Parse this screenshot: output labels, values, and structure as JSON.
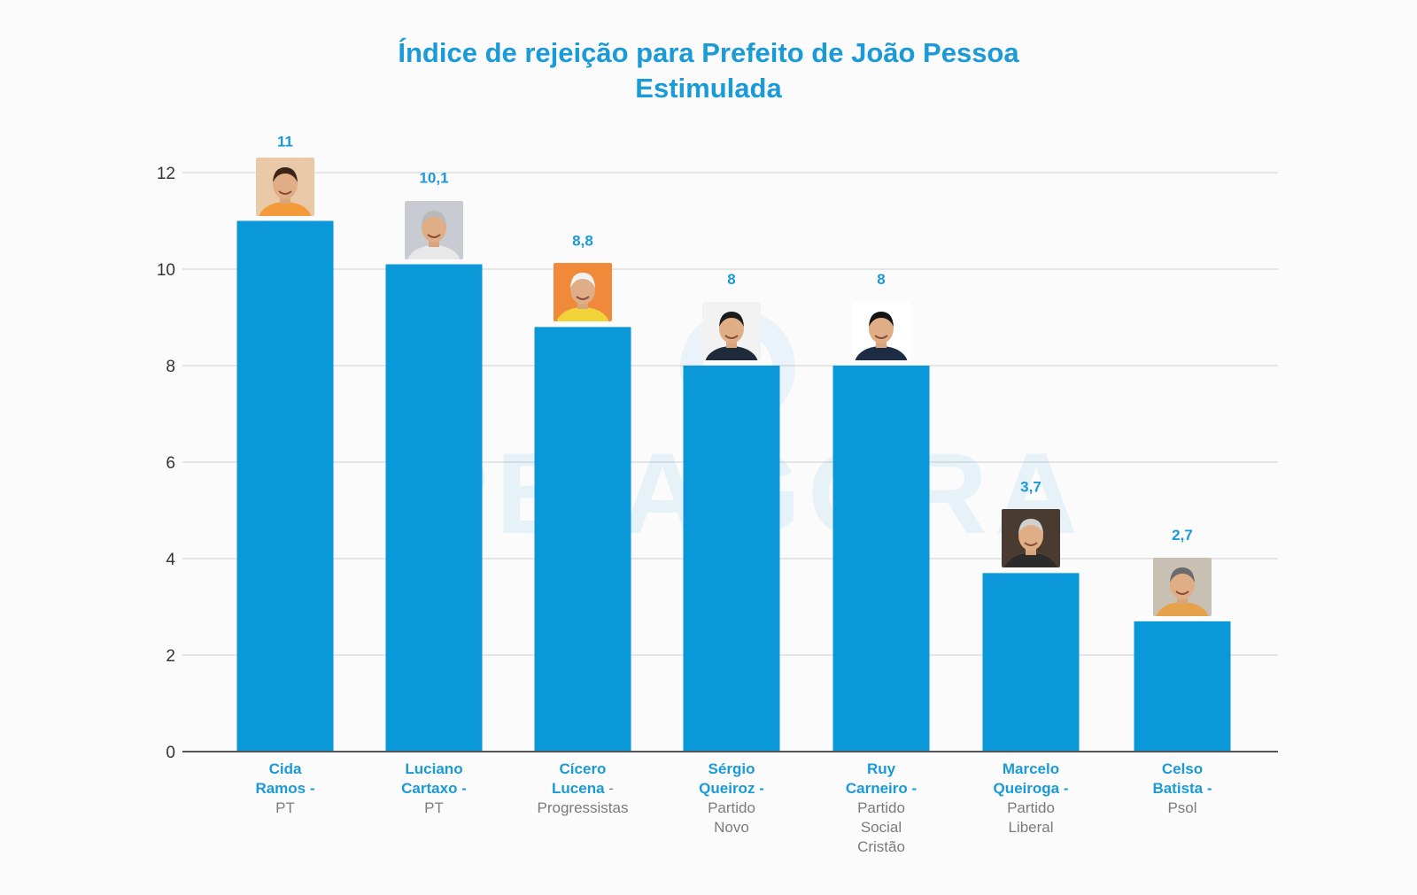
{
  "chart_data": {
    "type": "bar",
    "title": "Índice de rejeição para Prefeito de João Pessoa",
    "subtitle": "Estimulada",
    "xlabel": "",
    "ylabel": "",
    "ylim": [
      0,
      12
    ],
    "yticks": [
      0,
      2,
      4,
      6,
      8,
      10,
      12
    ],
    "grid": true,
    "legend": "none",
    "watermark": "PB AGORA",
    "categories": [
      {
        "name_line1": "Cida",
        "name_line2": "Ramos -",
        "party": [
          "PT"
        ]
      },
      {
        "name_line1": "Luciano",
        "name_line2": "Cartaxo -",
        "party": [
          "PT"
        ]
      },
      {
        "name_line1": "Cícero",
        "name_line2": "Lucena",
        "name_suffix": " -",
        "party": [
          "Progressistas"
        ]
      },
      {
        "name_line1": "Sérgio",
        "name_line2": "Queiroz -",
        "party": [
          "Partido",
          "Novo"
        ]
      },
      {
        "name_line1": "Ruy",
        "name_line2": "Carneiro -",
        "party": [
          "Partido",
          "Social",
          "Cristão"
        ]
      },
      {
        "name_line1": "Marcelo",
        "name_line2": "Queiroga -",
        "party": [
          "Partido",
          "Liberal"
        ]
      },
      {
        "name_line1": "Celso",
        "name_line2": "Batista -",
        "party": [
          "Psol"
        ]
      }
    ],
    "values": [
      11,
      10.1,
      8.8,
      8,
      8,
      3.7,
      2.7
    ],
    "value_labels": [
      "11",
      "10,1",
      "8,8",
      "8",
      "8",
      "3,7",
      "2,7"
    ]
  },
  "colors": {
    "bar": "#0a98d9",
    "label": "#1a9ad6",
    "party": "#7b7b7b",
    "grid": "#dedede",
    "axis": "#555555",
    "tick": "#333333"
  }
}
